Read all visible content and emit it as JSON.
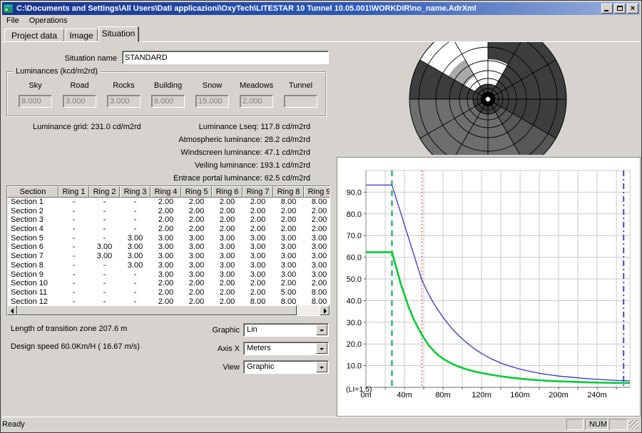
{
  "window": {
    "title": "C:\\Documents and Settings\\All Users\\Dati applicazioni\\OxyTech\\LITESTAR 10 Tunnel 10.05.001\\WORKDIR\\no_name.AdrXml"
  },
  "menu": {
    "items": [
      "File",
      "Operations"
    ]
  },
  "tabs": [
    {
      "label": "Project data",
      "active": false
    },
    {
      "label": "Image",
      "active": false
    },
    {
      "label": "Situation",
      "active": true
    }
  ],
  "form": {
    "situation_name_label": "Situation name",
    "situation_name_value": "STANDARD"
  },
  "luminances": {
    "group_title": "Luminances (kcd/m2rd)",
    "fields": [
      {
        "label": "Sky",
        "value": "8.000"
      },
      {
        "label": "Road",
        "value": "3.000"
      },
      {
        "label": "Rocks",
        "value": "3.000"
      },
      {
        "label": "Building",
        "value": "8.000"
      },
      {
        "label": "Snow",
        "value": "15.000"
      },
      {
        "label": "Meadows",
        "value": "2.000"
      },
      {
        "label": "Tunnel",
        "value": ""
      }
    ]
  },
  "stats": {
    "left": "Luminance grid: 231.0 cd/m2rd",
    "right": [
      "Luminance Lseq: 117.8 cd/m2rd",
      "Atmospheric luminance: 28.2 cd/m2rd",
      "Windscreen luminance: 47.1 cd/m2rd",
      "Veiling luminance: 193.1 cd/m2rd",
      "Entrace portal luminance: 62.5 cd/m2rd"
    ]
  },
  "table": {
    "columns": [
      "Section",
      "Ring 1",
      "Ring 2",
      "Ring 3",
      "Ring 4",
      "Ring 5",
      "Ring 6",
      "Ring 7",
      "Ring 8",
      "Ring 9"
    ],
    "rows": [
      {
        "name": "Section 1",
        "values": [
          "-",
          "-",
          "-",
          "2.00",
          "2.00",
          "2.00",
          "2.00",
          "8.00",
          "8.00"
        ]
      },
      {
        "name": "Section 2",
        "values": [
          "-",
          "-",
          "-",
          "2.00",
          "2.00",
          "2.00",
          "2.00",
          "2.00",
          "2.00"
        ]
      },
      {
        "name": "Section 3",
        "values": [
          "-",
          "-",
          "-",
          "2.00",
          "2.00",
          "2.00",
          "2.00",
          "2.00",
          "2.00"
        ]
      },
      {
        "name": "Section 4",
        "values": [
          "-",
          "-",
          "-",
          "2.00",
          "2.00",
          "2.00",
          "2.00",
          "2.00",
          "2.00"
        ]
      },
      {
        "name": "Section 5",
        "values": [
          "-",
          "-",
          "3.00",
          "3.00",
          "3.00",
          "3.00",
          "3.00",
          "3.00",
          "3.00"
        ]
      },
      {
        "name": "Section 6",
        "values": [
          "-",
          "3.00",
          "3.00",
          "3.00",
          "3.00",
          "3.00",
          "3.00",
          "3.00",
          "3.00"
        ]
      },
      {
        "name": "Section 7",
        "values": [
          "-",
          "3.00",
          "3.00",
          "3.00",
          "3.00",
          "3.00",
          "3.00",
          "3.00",
          "3.00"
        ]
      },
      {
        "name": "Section 8",
        "values": [
          "-",
          "-",
          "3.00",
          "3.00",
          "3.00",
          "3.00",
          "3.00",
          "3.00",
          "3.00"
        ]
      },
      {
        "name": "Section 9",
        "values": [
          "-",
          "-",
          "-",
          "3.00",
          "3.00",
          "3.00",
          "3.00",
          "3.00",
          "3.00"
        ]
      },
      {
        "name": "Section 10",
        "values": [
          "-",
          "-",
          "-",
          "2.00",
          "2.00",
          "2.00",
          "2.00",
          "2.00",
          "2.00"
        ]
      },
      {
        "name": "Section 11",
        "values": [
          "-",
          "-",
          "-",
          "2.00",
          "2.00",
          "2.00",
          "2.00",
          "5.00",
          "8.00"
        ]
      },
      {
        "name": "Section 12",
        "values": [
          "-",
          "-",
          "-",
          "2.00",
          "2.00",
          "2.00",
          "8.00",
          "8.00",
          "8.00"
        ]
      }
    ]
  },
  "footer": {
    "transition": "Length of transition zone 207.6 m",
    "design_speed": "Design speed 60.0Km/H ( 16.67 m/s)",
    "combos": [
      {
        "label": "Graphic",
        "value": "Lin"
      },
      {
        "label": "Axis X",
        "value": "Meters"
      },
      {
        "label": "View",
        "value": "Graphic"
      }
    ]
  },
  "status_bar": {
    "ready": "Ready",
    "num": "NUM"
  },
  "polar_diagram": {
    "palette": {
      "dark": "#3d3d3d",
      "dark2": "#575757",
      "medium": "#6e6e6e",
      "light": "#a9a9a9",
      "white": "#ffffff"
    },
    "sectors": [
      "dark",
      "dark",
      "dark",
      "dark",
      "dark2",
      "medium",
      "medium",
      "medium",
      "medium",
      "dark",
      "white",
      "white"
    ],
    "overlays": [
      {
        "sector": 0,
        "color": "white",
        "r0": 20,
        "r1": 56
      },
      {
        "sector": 10,
        "color": "light",
        "r0": 37,
        "r1": 64
      }
    ],
    "rings": [
      6,
      10,
      15,
      21,
      29,
      40,
      54,
      73,
      97
    ],
    "outer_radius": 110,
    "inner_dark_radius": 21,
    "hub_radius": 9.5,
    "hub_dot_radius": 3.2
  },
  "chart_data": {
    "type": "line",
    "title": "",
    "xlabel": "",
    "ylabel": "",
    "xlim": [
      0,
      274
    ],
    "ylim": [
      0,
      100
    ],
    "grid": true,
    "grid_step_x": 20,
    "grid_step_y": 10,
    "x_ticks": [
      {
        "x": 0,
        "label": "0m"
      },
      {
        "x": 40,
        "label": "40m"
      },
      {
        "x": 80,
        "label": "80m"
      },
      {
        "x": 120,
        "label": "120m"
      },
      {
        "x": 160,
        "label": "160m"
      },
      {
        "x": 200,
        "label": "200m"
      },
      {
        "x": 240,
        "label": "240m"
      }
    ],
    "y_ticks": [
      {
        "y": 10,
        "label": "10.0"
      },
      {
        "y": 20,
        "label": "20.0"
      },
      {
        "y": 30,
        "label": "30.0"
      },
      {
        "y": 40,
        "label": "40.0"
      },
      {
        "y": 50,
        "label": "50.0"
      },
      {
        "y": 60,
        "label": "60.0"
      },
      {
        "y": 70,
        "label": "70.0"
      },
      {
        "y": 80,
        "label": "80.0"
      },
      {
        "y": 90,
        "label": "90.0"
      }
    ],
    "annotation": "(LI=1.5)",
    "markers": [
      {
        "x": 27,
        "color": "#00a651",
        "dash": "8,6",
        "width": 2
      },
      {
        "x": 58,
        "color": "#dd2626",
        "dash": "2,3",
        "width": 1
      },
      {
        "x": 267.5,
        "color": "#4444dd",
        "dash": "8,4,2,4",
        "width": 2
      }
    ],
    "series": [
      {
        "name": "entrance-luminance-upper",
        "color": "#3636c8",
        "width": 1.3,
        "points": [
          [
            0,
            93.3
          ],
          [
            27,
            93.3
          ],
          [
            58,
            49.5
          ],
          [
            65,
            43
          ],
          [
            72,
            37.5
          ],
          [
            80,
            32.3
          ],
          [
            88,
            27.8
          ],
          [
            96,
            24
          ],
          [
            104,
            20.8
          ],
          [
            112,
            18
          ],
          [
            120,
            15.6
          ],
          [
            130,
            13.2
          ],
          [
            140,
            11.2
          ],
          [
            150,
            9.7
          ],
          [
            160,
            8.4
          ],
          [
            170,
            7.4
          ],
          [
            180,
            6.5
          ],
          [
            190,
            5.8
          ],
          [
            200,
            5.2
          ],
          [
            212,
            4.7
          ],
          [
            224,
            4.2
          ],
          [
            236,
            3.8
          ],
          [
            248,
            3.5
          ],
          [
            260,
            3.2
          ],
          [
            274,
            3.0
          ]
        ]
      },
      {
        "name": "entrance-luminance-lower",
        "color": "#00cc33",
        "width": 2.6,
        "points": [
          [
            0,
            62.3
          ],
          [
            27,
            62.3
          ],
          [
            36,
            48
          ],
          [
            44,
            37.5
          ],
          [
            50,
            31
          ],
          [
            58,
            24.3
          ],
          [
            65,
            19.5
          ],
          [
            72,
            16
          ],
          [
            80,
            13.2
          ],
          [
            88,
            11.2
          ],
          [
            96,
            9.6
          ],
          [
            104,
            8.4
          ],
          [
            112,
            7.4
          ],
          [
            120,
            6.6
          ],
          [
            130,
            5.8
          ],
          [
            140,
            5.1
          ],
          [
            150,
            4.5
          ],
          [
            160,
            4.0
          ],
          [
            170,
            3.6
          ],
          [
            180,
            3.3
          ],
          [
            190,
            3.0
          ],
          [
            200,
            2.8
          ],
          [
            212,
            2.6
          ],
          [
            224,
            2.4
          ],
          [
            236,
            2.25
          ],
          [
            248,
            2.15
          ],
          [
            260,
            2.05
          ],
          [
            274,
            2.0
          ]
        ]
      }
    ]
  }
}
